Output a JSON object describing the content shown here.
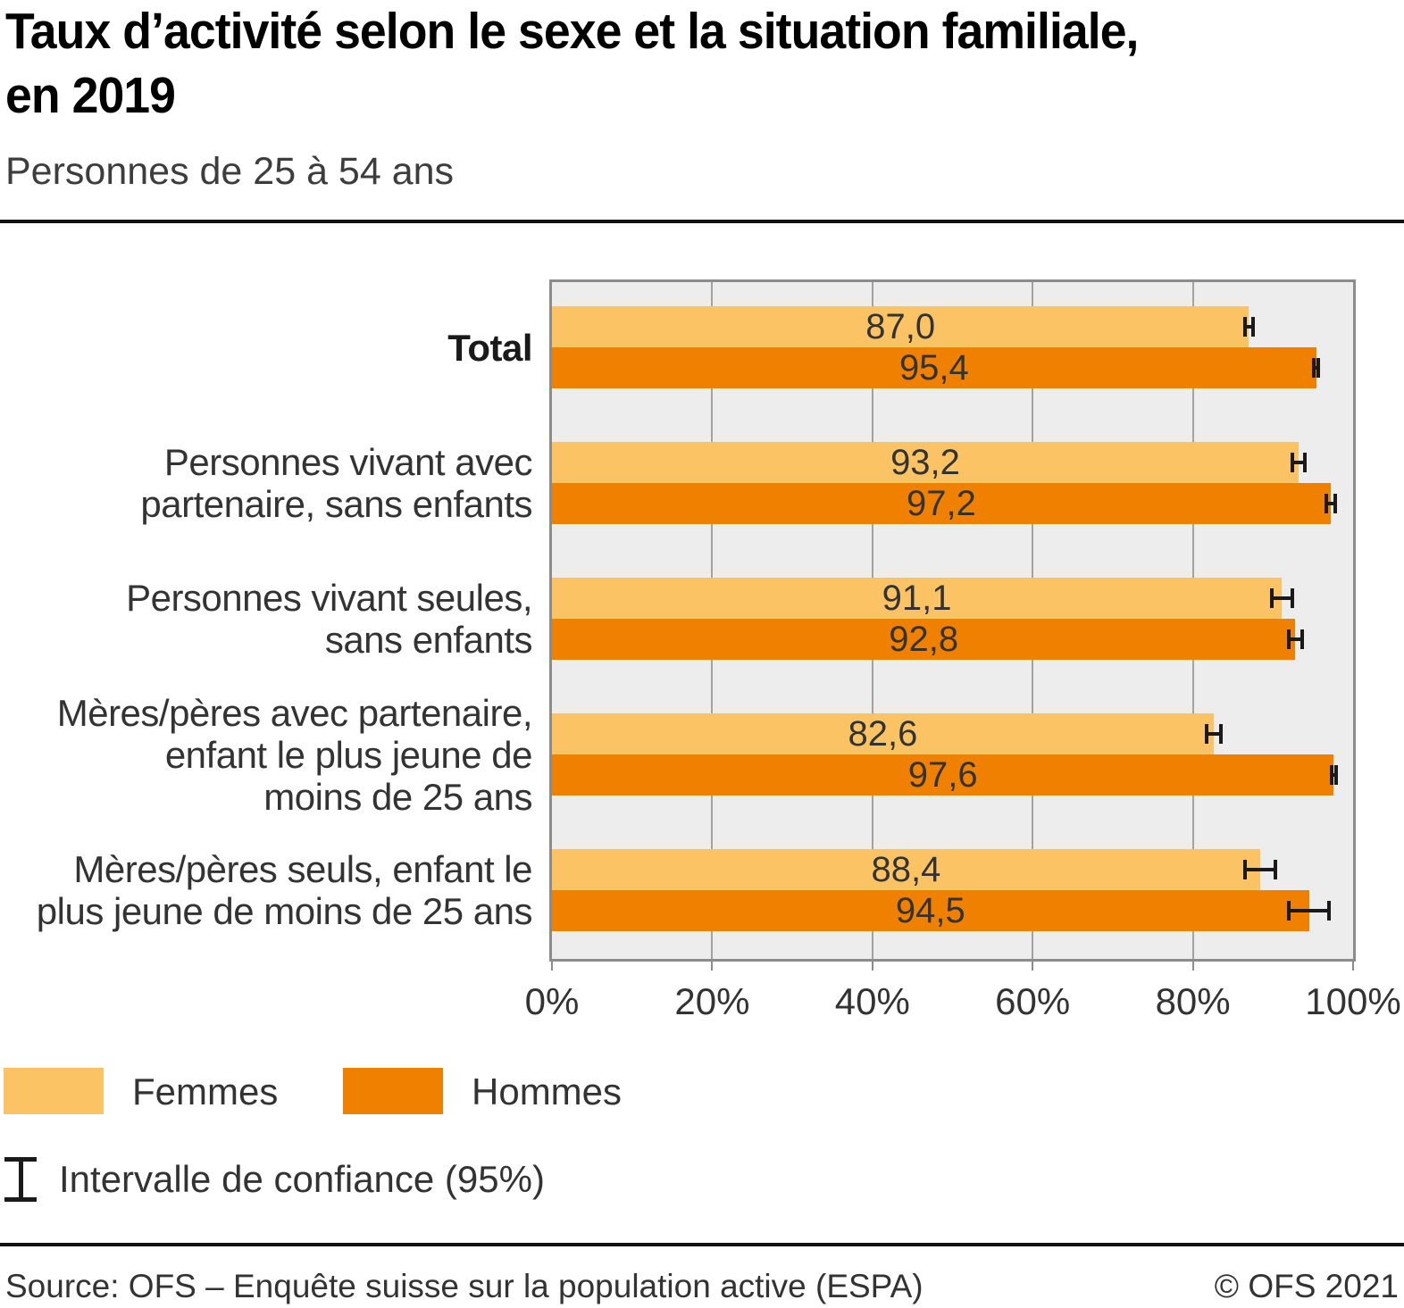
{
  "header": {
    "title": "Taux d’activité selon le sexe et la situation familiale,\nen 2019",
    "subtitle": "Personnes de 25 à 54 ans"
  },
  "chart_data": {
    "type": "bar",
    "orientation": "horizontal",
    "unit": "percent",
    "xlim": [
      0,
      100
    ],
    "x_ticks": [
      "0%",
      "20%",
      "40%",
      "60%",
      "80%",
      "100%"
    ],
    "gridline_percents": [
      20,
      40,
      60,
      80
    ],
    "grid": true,
    "plot_bg": "#ededed",
    "categories": [
      {
        "label": "Total",
        "bold": true
      },
      {
        "label": "Personnes vivant avec\npartenaire, sans enfants",
        "bold": false
      },
      {
        "label": "Personnes vivant seules,\nsans enfants",
        "bold": false
      },
      {
        "label": "Mères/pères avec partenaire,\nenfant le plus jeune de\nmoins de 25 ans",
        "bold": false
      },
      {
        "label": "Mères/pères seuls, enfant le\nplus jeune de moins de 25 ans",
        "bold": false
      }
    ],
    "series": [
      {
        "name": "Femmes",
        "color": "#fbc364",
        "values": [
          87.0,
          93.2,
          91.1,
          82.6,
          88.4
        ],
        "ci_halfwidth": [
          0.7,
          1.0,
          1.5,
          1.1,
          2.1
        ]
      },
      {
        "name": "Hommes",
        "color": "#f08100",
        "values": [
          95.4,
          97.2,
          92.8,
          97.6,
          94.5
        ],
        "ci_halfwidth": [
          0.5,
          0.8,
          1.1,
          0.5,
          2.7
        ]
      }
    ],
    "value_label_format": "decimal-comma-1"
  },
  "legend": {
    "items": [
      {
        "label": "Femmes",
        "color": "#fbc364"
      },
      {
        "label": "Hommes",
        "color": "#f08100"
      }
    ],
    "ci_label": "Intervalle de confiance (95%)"
  },
  "footer": {
    "source": "Source: OFS – Enquête suisse sur la population active (ESPA)",
    "copyright": "© OFS 2021"
  }
}
